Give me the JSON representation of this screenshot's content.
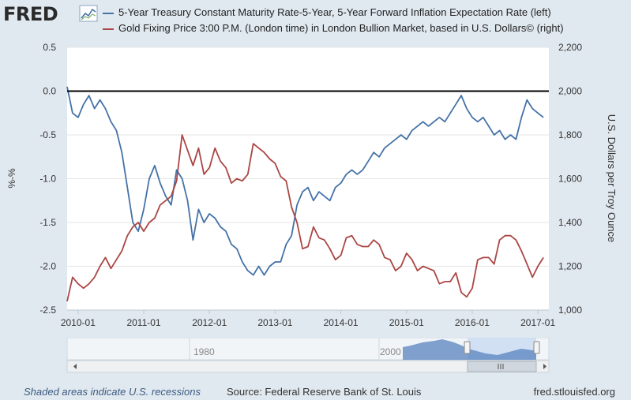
{
  "header": {
    "logo_text": "FRED",
    "logo_icon": "trend-chart-icon",
    "legend": [
      {
        "label": "5-Year Treasury Constant Maturity Rate-5-Year, 5-Year Forward Inflation Expectation Rate (left)",
        "color": "#4572a7"
      },
      {
        "label": "Gold Fixing Price 3:00 P.M. (London time) in London Bullion Market, based in U.S. Dollars© (right)",
        "color": "#aa4643"
      }
    ]
  },
  "chart_data": {
    "type": "line",
    "title": "",
    "xlabel": "",
    "ylabel_left": "%-%",
    "ylabel_right": "U.S. Dollars per Troy Ounce",
    "x_ticks": [
      "2010-01",
      "2011-01",
      "2012-01",
      "2013-01",
      "2014-01",
      "2015-01",
      "2016-01",
      "2017-01"
    ],
    "y_left_ticks": [
      "0.5",
      "0.0",
      "-0.5",
      "-1.0",
      "-1.5",
      "-2.0",
      "-2.5"
    ],
    "y_right_ticks": [
      "2,200",
      "2,000",
      "1,800",
      "1,600",
      "1,400",
      "1,200",
      "1,000"
    ],
    "ylim_left": [
      -2.5,
      0.5
    ],
    "ylim_right": [
      1000,
      2200
    ],
    "xlim": [
      "2009-11",
      "2017-03"
    ],
    "zero_line": 0.0,
    "grid": "horizontal",
    "series": [
      {
        "name": "5-Year Treasury Constant Maturity Rate-5-Year, 5-Year Forward Inflation Expectation Rate",
        "axis": "left",
        "color": "#4572a7",
        "x": [
          "2009-11",
          "2009-12",
          "2010-01",
          "2010-02",
          "2010-03",
          "2010-04",
          "2010-05",
          "2010-06",
          "2010-07",
          "2010-08",
          "2010-09",
          "2010-10",
          "2010-11",
          "2010-12",
          "2011-01",
          "2011-02",
          "2011-03",
          "2011-04",
          "2011-05",
          "2011-06",
          "2011-07",
          "2011-08",
          "2011-09",
          "2011-10",
          "2011-11",
          "2011-12",
          "2012-01",
          "2012-02",
          "2012-03",
          "2012-04",
          "2012-05",
          "2012-06",
          "2012-07",
          "2012-08",
          "2012-09",
          "2012-10",
          "2012-11",
          "2012-12",
          "2013-01",
          "2013-02",
          "2013-03",
          "2013-04",
          "2013-05",
          "2013-06",
          "2013-07",
          "2013-08",
          "2013-09",
          "2013-10",
          "2013-11",
          "2013-12",
          "2014-01",
          "2014-02",
          "2014-03",
          "2014-04",
          "2014-05",
          "2014-06",
          "2014-07",
          "2014-08",
          "2014-09",
          "2014-10",
          "2014-11",
          "2014-12",
          "2015-01",
          "2015-02",
          "2015-03",
          "2015-04",
          "2015-05",
          "2015-06",
          "2015-07",
          "2015-08",
          "2015-09",
          "2015-10",
          "2015-11",
          "2015-12",
          "2016-01",
          "2016-02",
          "2016-03",
          "2016-04",
          "2016-05",
          "2016-06",
          "2016-07",
          "2016-08",
          "2016-09",
          "2016-10",
          "2016-11",
          "2016-12",
          "2017-01",
          "2017-02"
        ],
        "values": [
          0.05,
          -0.25,
          -0.3,
          -0.15,
          -0.05,
          -0.2,
          -0.1,
          -0.2,
          -0.35,
          -0.45,
          -0.7,
          -1.1,
          -1.5,
          -1.6,
          -1.35,
          -1.0,
          -0.85,
          -1.05,
          -1.2,
          -1.3,
          -0.9,
          -1.0,
          -1.25,
          -1.7,
          -1.35,
          -1.5,
          -1.4,
          -1.45,
          -1.55,
          -1.6,
          -1.75,
          -1.8,
          -1.95,
          -2.05,
          -2.1,
          -2.0,
          -2.1,
          -2.0,
          -1.95,
          -1.95,
          -1.75,
          -1.65,
          -1.3,
          -1.15,
          -1.1,
          -1.25,
          -1.15,
          -1.2,
          -1.25,
          -1.1,
          -1.05,
          -0.95,
          -0.9,
          -0.95,
          -0.9,
          -0.8,
          -0.7,
          -0.75,
          -0.65,
          -0.6,
          -0.55,
          -0.5,
          -0.55,
          -0.45,
          -0.4,
          -0.35,
          -0.4,
          -0.35,
          -0.3,
          -0.35,
          -0.25,
          -0.15,
          -0.05,
          -0.2,
          -0.3,
          -0.35,
          -0.3,
          -0.4,
          -0.5,
          -0.45,
          -0.55,
          -0.5,
          -0.55,
          -0.3,
          -0.1,
          -0.2,
          -0.25,
          -0.3
        ]
      },
      {
        "name": "Gold Fixing Price 3:00 P.M. (London time) in London Bullion Market, based in U.S. Dollars©",
        "axis": "right",
        "color": "#aa4643",
        "x": [
          "2009-11",
          "2009-12",
          "2010-01",
          "2010-02",
          "2010-03",
          "2010-04",
          "2010-05",
          "2010-06",
          "2010-07",
          "2010-08",
          "2010-09",
          "2010-10",
          "2010-11",
          "2010-12",
          "2011-01",
          "2011-02",
          "2011-03",
          "2011-04",
          "2011-05",
          "2011-06",
          "2011-07",
          "2011-08",
          "2011-09",
          "2011-10",
          "2011-11",
          "2011-12",
          "2012-01",
          "2012-02",
          "2012-03",
          "2012-04",
          "2012-05",
          "2012-06",
          "2012-07",
          "2012-08",
          "2012-09",
          "2012-10",
          "2012-11",
          "2012-12",
          "2013-01",
          "2013-02",
          "2013-03",
          "2013-04",
          "2013-05",
          "2013-06",
          "2013-07",
          "2013-08",
          "2013-09",
          "2013-10",
          "2013-11",
          "2013-12",
          "2014-01",
          "2014-02",
          "2014-03",
          "2014-04",
          "2014-05",
          "2014-06",
          "2014-07",
          "2014-08",
          "2014-09",
          "2014-10",
          "2014-11",
          "2014-12",
          "2015-01",
          "2015-02",
          "2015-03",
          "2015-04",
          "2015-05",
          "2015-06",
          "2015-07",
          "2015-08",
          "2015-09",
          "2015-10",
          "2015-11",
          "2015-12",
          "2016-01",
          "2016-02",
          "2016-03",
          "2016-04",
          "2016-05",
          "2016-06",
          "2016-07",
          "2016-08",
          "2016-09",
          "2016-10",
          "2016-11",
          "2016-12",
          "2017-01",
          "2017-02"
        ],
        "values": [
          1040,
          1150,
          1120,
          1100,
          1120,
          1150,
          1200,
          1240,
          1190,
          1230,
          1270,
          1340,
          1380,
          1400,
          1360,
          1400,
          1420,
          1480,
          1500,
          1520,
          1590,
          1800,
          1730,
          1660,
          1740,
          1620,
          1650,
          1740,
          1680,
          1650,
          1580,
          1600,
          1590,
          1620,
          1760,
          1740,
          1720,
          1690,
          1670,
          1610,
          1590,
          1470,
          1400,
          1280,
          1290,
          1380,
          1330,
          1320,
          1280,
          1230,
          1250,
          1330,
          1340,
          1300,
          1290,
          1290,
          1320,
          1300,
          1240,
          1230,
          1180,
          1200,
          1260,
          1230,
          1180,
          1200,
          1190,
          1180,
          1120,
          1130,
          1130,
          1170,
          1080,
          1060,
          1100,
          1230,
          1240,
          1240,
          1210,
          1320,
          1340,
          1340,
          1320,
          1270,
          1210,
          1150,
          1200,
          1240
        ]
      }
    ]
  },
  "navigator": {
    "labels": [
      "1980",
      "2000"
    ]
  },
  "footer": {
    "recession_note": "Shaded areas indicate U.S. recessions",
    "source": "Source: Federal Reserve Bank of St. Louis",
    "site": "fred.stlouisfed.org"
  }
}
